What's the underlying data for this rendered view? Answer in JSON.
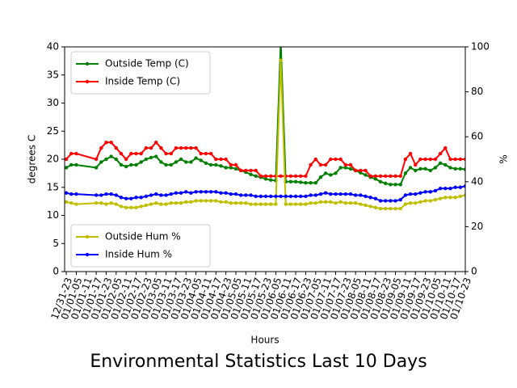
{
  "chart_data": {
    "type": "line",
    "title": "Environmental Statistics Last 10 Days",
    "xlabel": "Hours",
    "ylabel": "degrees C",
    "y2label": "%",
    "xlim": [
      -1,
      240
    ],
    "ylim": [
      0,
      40
    ],
    "y2lim": [
      0,
      100
    ],
    "yticks": [
      0,
      5,
      10,
      15,
      20,
      25,
      30,
      35,
      40
    ],
    "y2ticks": [
      0,
      20,
      40,
      60,
      80,
      100
    ],
    "xticks": [
      {
        "value": 0,
        "label": "12/31-23"
      },
      {
        "value": 6,
        "label": "01/01-05"
      },
      {
        "value": 12,
        "label": "01/01-11"
      },
      {
        "value": 18,
        "label": "01/01-17"
      },
      {
        "value": 24,
        "label": "01/01-23"
      },
      {
        "value": 30,
        "label": "01/02-05"
      },
      {
        "value": 36,
        "label": "01/02-11"
      },
      {
        "value": 42,
        "label": "01/02-17"
      },
      {
        "value": 48,
        "label": "01/02-23"
      },
      {
        "value": 54,
        "label": "01/03-05"
      },
      {
        "value": 60,
        "label": "01/03-11"
      },
      {
        "value": 66,
        "label": "01/03-17"
      },
      {
        "value": 72,
        "label": "01/03-23"
      },
      {
        "value": 78,
        "label": "01/04-05"
      },
      {
        "value": 84,
        "label": "01/04-11"
      },
      {
        "value": 90,
        "label": "01/04-17"
      },
      {
        "value": 96,
        "label": "01/04-23"
      },
      {
        "value": 102,
        "label": "01/05-05"
      },
      {
        "value": 108,
        "label": "01/05-11"
      },
      {
        "value": 114,
        "label": "01/05-17"
      },
      {
        "value": 120,
        "label": "01/05-23"
      },
      {
        "value": 126,
        "label": "01/06-05"
      },
      {
        "value": 132,
        "label": "01/06-11"
      },
      {
        "value": 138,
        "label": "01/06-17"
      },
      {
        "value": 144,
        "label": "01/06-23"
      },
      {
        "value": 150,
        "label": "01/07-05"
      },
      {
        "value": 156,
        "label": "01/07-11"
      },
      {
        "value": 162,
        "label": "01/07-17"
      },
      {
        "value": 168,
        "label": "01/07-23"
      },
      {
        "value": 174,
        "label": "01/08-05"
      },
      {
        "value": 180,
        "label": "01/08-11"
      },
      {
        "value": 186,
        "label": "01/08-17"
      },
      {
        "value": 192,
        "label": "01/08-23"
      },
      {
        "value": 198,
        "label": "01/09-05"
      },
      {
        "value": 204,
        "label": "01/09-11"
      },
      {
        "value": 210,
        "label": "01/09-17"
      },
      {
        "value": 216,
        "label": "01/09-23"
      },
      {
        "value": 222,
        "label": "01/10-05"
      },
      {
        "value": 228,
        "label": "01/10-11"
      },
      {
        "value": 234,
        "label": "01/10-17"
      },
      {
        "value": 240,
        "label": "01/10-23"
      }
    ],
    "x": [
      0,
      3,
      6,
      18,
      21,
      24,
      27,
      30,
      33,
      36,
      39,
      42,
      45,
      48,
      51,
      54,
      57,
      60,
      63,
      66,
      69,
      72,
      75,
      78,
      81,
      84,
      87,
      90,
      93,
      96,
      99,
      102,
      105,
      108,
      111,
      114,
      117,
      120,
      123,
      126,
      129,
      132,
      135,
      138,
      141,
      144,
      147,
      150,
      153,
      156,
      159,
      162,
      165,
      168,
      171,
      174,
      177,
      180,
      183,
      186,
      189,
      192,
      195,
      198,
      201,
      204,
      207,
      210,
      213,
      216,
      219,
      222,
      225,
      228,
      231,
      234,
      237,
      240
    ],
    "legend_y": "upper left",
    "legend_y2": "lower left",
    "series": [
      {
        "name": "Outside Temp (C)",
        "color": "#008000",
        "axis": "y",
        "values": [
          18.5,
          19,
          19,
          18.5,
          19.5,
          20,
          20.5,
          20,
          19,
          18.7,
          19,
          19,
          19.5,
          20,
          20.3,
          20.5,
          19.5,
          19,
          19,
          19.5,
          20,
          19.5,
          19.5,
          20.2,
          19.8,
          19.3,
          19,
          19,
          18.8,
          18.5,
          18.5,
          18.3,
          18,
          17.7,
          17.3,
          17,
          16.8,
          16.5,
          16.3,
          16.2,
          41,
          16,
          16,
          16,
          15.9,
          15.8,
          15.8,
          15.8,
          16.8,
          17.5,
          17.2,
          17.5,
          18.5,
          18.5,
          18.3,
          18,
          17.6,
          17.2,
          16.8,
          16.5,
          16,
          15.7,
          15.5,
          15.5,
          15.5,
          17.5,
          18.5,
          18,
          18.3,
          18.3,
          18,
          18.5,
          19.3,
          19,
          18.5,
          18.3,
          18.3,
          18.2
        ]
      },
      {
        "name": "Inside Temp (C)",
        "color": "#ff0000",
        "axis": "y",
        "values": [
          20,
          21,
          21,
          20,
          22,
          23,
          23,
          22,
          21,
          20,
          21,
          21,
          21,
          22,
          22,
          23,
          22,
          21,
          21,
          22,
          22,
          22,
          22,
          22,
          21,
          21,
          21,
          20,
          20,
          20,
          19,
          19,
          18,
          18,
          18,
          18,
          17,
          17,
          17,
          17,
          17,
          17,
          17,
          17,
          17,
          17,
          19,
          20,
          19,
          19,
          20,
          20,
          20,
          19,
          19,
          18,
          18,
          18,
          17,
          17,
          17,
          17,
          17,
          17,
          17,
          20,
          21,
          19,
          20,
          20,
          20,
          20,
          21,
          22,
          20,
          20,
          20,
          20
        ]
      },
      {
        "name": "Outside Hum %",
        "color": "#bfbf00",
        "axis": "y2",
        "values": [
          31,
          30.5,
          30,
          30.5,
          30.5,
          30,
          30.5,
          30,
          29,
          28.5,
          28.5,
          28.5,
          29,
          29.5,
          30,
          30.5,
          30,
          30,
          30.5,
          30.5,
          30.5,
          31,
          31,
          31.5,
          31.5,
          31.5,
          31.5,
          31.5,
          31,
          31,
          30.5,
          30.5,
          30.5,
          30.5,
          30,
          30,
          30,
          30,
          30,
          30,
          94,
          30,
          30,
          30,
          30,
          30,
          30.5,
          30.5,
          31,
          31,
          31,
          30.5,
          31,
          30.5,
          30.5,
          30.5,
          30,
          29.5,
          29,
          28.5,
          28,
          28,
          28,
          28,
          28,
          30,
          30.5,
          30.5,
          31,
          31.5,
          31.5,
          32,
          32.5,
          33,
          33,
          33,
          33.5,
          34
        ]
      },
      {
        "name": "Inside Hum %",
        "color": "#0000ff",
        "axis": "y2",
        "values": [
          35,
          34.5,
          34.5,
          34,
          34,
          34.5,
          34.5,
          34,
          33,
          32.5,
          32.5,
          33,
          33,
          33.5,
          34,
          34.5,
          34,
          34,
          34.5,
          35,
          35,
          35.5,
          35,
          35.5,
          35.5,
          35.5,
          35.5,
          35.5,
          35,
          35,
          34.5,
          34.5,
          34,
          34,
          34,
          33.5,
          33.5,
          33.5,
          33.5,
          33.5,
          33.5,
          33.5,
          33.5,
          33.5,
          33.5,
          33.5,
          34,
          34,
          34.5,
          35,
          34.5,
          34.5,
          34.5,
          34.5,
          34.5,
          34,
          34,
          33.5,
          33,
          32.5,
          31.5,
          31.5,
          31.5,
          31.5,
          32,
          34,
          34.5,
          34.5,
          35,
          35.5,
          35.5,
          36,
          37,
          37,
          37,
          37.5,
          37.5,
          38
        ]
      }
    ]
  }
}
